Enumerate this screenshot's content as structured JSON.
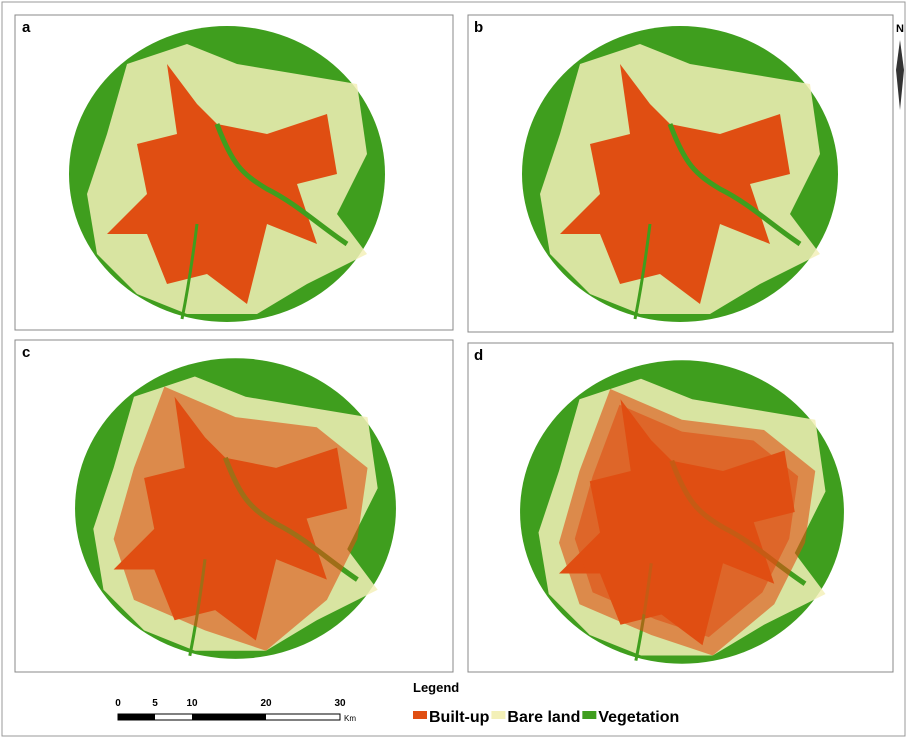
{
  "panels": [
    {
      "label": "a"
    },
    {
      "label": "b"
    },
    {
      "label": "c"
    },
    {
      "label": "d"
    }
  ],
  "north": "N",
  "legend": {
    "title": "Legend",
    "items": [
      {
        "label": "Built-up",
        "color": "#e04e12"
      },
      {
        "label": "Bare land",
        "color": "#f3f0b8"
      },
      {
        "label": "Vegetation",
        "color": "#3f9e1e"
      }
    ]
  },
  "scale_bar": {
    "ticks": [
      0,
      5,
      10,
      20,
      30
    ],
    "unit": "Km"
  }
}
